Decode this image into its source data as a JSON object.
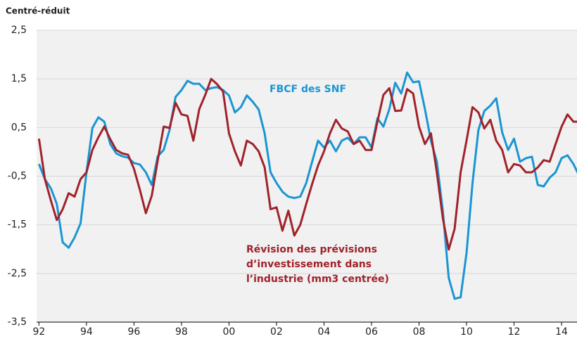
{
  "chart_data": {
    "type": "line",
    "y_axis_label": "Centré-réduit",
    "annotations": [
      "FBCF des SNF",
      "Révision des prévisions",
      "d’investissement dans",
      "l’industrie (mm3 centrée)"
    ],
    "x": [
      1992,
      1992.25,
      1992.5,
      1992.75,
      1993,
      1993.25,
      1993.5,
      1993.75,
      1994,
      1994.25,
      1994.5,
      1994.75,
      1995,
      1995.25,
      1995.5,
      1995.75,
      1996,
      1996.25,
      1996.5,
      1996.75,
      1997,
      1997.25,
      1997.5,
      1997.75,
      1998,
      1998.25,
      1998.5,
      1998.75,
      1999,
      1999.25,
      1999.5,
      1999.75,
      2000,
      2000.25,
      2000.5,
      2000.75,
      2001,
      2001.25,
      2001.5,
      2001.75,
      2002,
      2002.25,
      2002.5,
      2002.75,
      2003,
      2003.25,
      2003.5,
      2003.75,
      2004,
      2004.25,
      2004.5,
      2004.75,
      2005,
      2005.25,
      2005.5,
      2005.75,
      2006,
      2006.25,
      2006.5,
      2006.75,
      2007,
      2007.25,
      2007.5,
      2007.75,
      2008,
      2008.25,
      2008.5,
      2008.75,
      2009,
      2009.25,
      2009.5,
      2009.75,
      2010,
      2010.25,
      2010.5,
      2010.75,
      2011,
      2011.25,
      2011.5,
      2011.75,
      2012,
      2012.25,
      2012.5,
      2012.75,
      2013,
      2013.25,
      2013.5,
      2013.75,
      2014,
      2014.25,
      2014.5,
      2014.75
    ],
    "series": [
      {
        "name": "FBCF des SNF",
        "color": "#1a95d2",
        "values": [
          -0.25,
          -0.56,
          -0.75,
          -1.07,
          -1.86,
          -1.97,
          -1.76,
          -1.47,
          -0.42,
          0.49,
          0.71,
          0.62,
          0.16,
          -0.03,
          -0.09,
          -0.12,
          -0.23,
          -0.26,
          -0.42,
          -0.68,
          -0.09,
          0.04,
          0.45,
          1.13,
          1.27,
          1.46,
          1.4,
          1.4,
          1.27,
          1.31,
          1.33,
          1.27,
          1.16,
          0.81,
          0.92,
          1.16,
          1.03,
          0.87,
          0.38,
          -0.42,
          -0.64,
          -0.82,
          -0.92,
          -0.95,
          -0.92,
          -0.64,
          -0.2,
          0.23,
          0.09,
          0.23,
          0.01,
          0.23,
          0.29,
          0.16,
          0.3,
          0.3,
          0.09,
          0.69,
          0.52,
          0.88,
          1.42,
          1.2,
          1.63,
          1.43,
          1.45,
          0.88,
          0.23,
          -0.2,
          -1.21,
          -2.59,
          -3.02,
          -2.99,
          -2.08,
          -0.64,
          0.45,
          0.84,
          0.95,
          1.1,
          0.4,
          0.04,
          0.27,
          -0.2,
          -0.13,
          -0.1,
          -0.68,
          -0.71,
          -0.53,
          -0.42,
          -0.13,
          -0.07,
          -0.25,
          -0.5
        ]
      },
      {
        "name": "Révision des prévisions d’investissement dans l’industrie (mm3 centrée)",
        "color": "#a0222a",
        "values": [
          0.27,
          -0.56,
          -1.0,
          -1.4,
          -1.18,
          -0.85,
          -0.92,
          -0.56,
          -0.42,
          0.04,
          0.3,
          0.52,
          0.26,
          0.04,
          -0.03,
          -0.06,
          -0.35,
          -0.78,
          -1.26,
          -0.9,
          -0.17,
          0.52,
          0.49,
          1.01,
          0.77,
          0.74,
          0.23,
          0.88,
          1.17,
          1.5,
          1.39,
          1.24,
          0.38,
          0.01,
          -0.28,
          0.23,
          0.16,
          0.01,
          -0.32,
          -1.18,
          -1.14,
          -1.62,
          -1.21,
          -1.72,
          -1.5,
          -1.07,
          -0.66,
          -0.28,
          0.01,
          0.38,
          0.66,
          0.48,
          0.42,
          0.16,
          0.23,
          0.04,
          0.04,
          0.62,
          1.17,
          1.31,
          0.84,
          0.85,
          1.29,
          1.2,
          0.52,
          0.16,
          0.38,
          -0.42,
          -1.36,
          -2.01,
          -1.58,
          -0.42,
          0.23,
          0.92,
          0.81,
          0.48,
          0.66,
          0.23,
          0.04,
          -0.42,
          -0.25,
          -0.28,
          -0.42,
          -0.42,
          -0.32,
          -0.17,
          -0.2,
          0.16,
          0.52,
          0.77,
          0.62,
          0.62
        ]
      }
    ],
    "xlim": [
      1991.9,
      2014.65
    ],
    "xticks": [
      {
        "value": 1992,
        "label": "92"
      },
      {
        "value": 1994,
        "label": "94"
      },
      {
        "value": 1996,
        "label": "96"
      },
      {
        "value": 1998,
        "label": "98"
      },
      {
        "value": 2000,
        "label": "00"
      },
      {
        "value": 2002,
        "label": "02"
      },
      {
        "value": 2004,
        "label": "04"
      },
      {
        "value": 2006,
        "label": "06"
      },
      {
        "value": 2008,
        "label": "08"
      },
      {
        "value": 2010,
        "label": "10"
      },
      {
        "value": 2012,
        "label": "12"
      },
      {
        "value": 2014,
        "label": "14"
      }
    ],
    "ylim": [
      -3.5,
      2.5
    ],
    "yticks": [
      {
        "value": -3.5,
        "label": "-3,5"
      },
      {
        "value": -2.5,
        "label": "-2,5"
      },
      {
        "value": -1.5,
        "label": "-1,5"
      },
      {
        "value": -0.5,
        "label": "-0,5"
      },
      {
        "value": 0.5,
        "label": "0,5"
      },
      {
        "value": 1.5,
        "label": "1,5"
      },
      {
        "value": 2.5,
        "label": "2,5"
      }
    ],
    "grid": true
  }
}
